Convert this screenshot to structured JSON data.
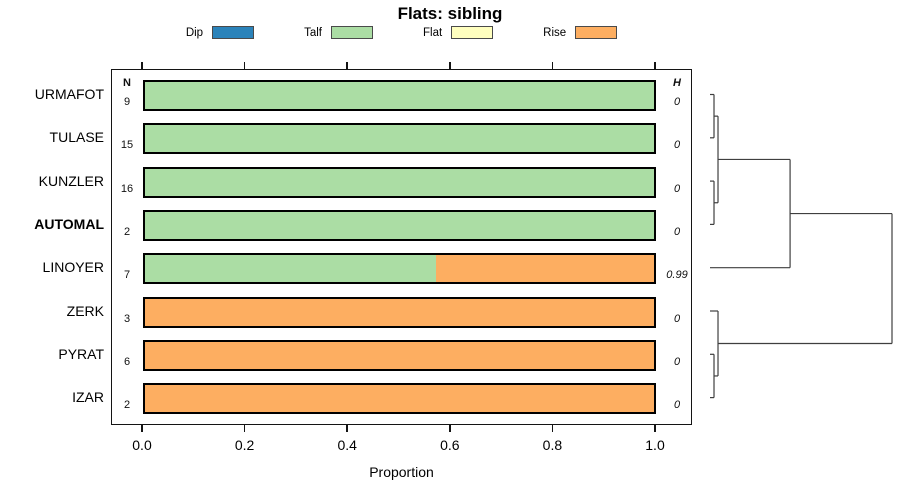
{
  "title": "Flats: sibling",
  "legend": {
    "items": [
      {
        "label": "Dip",
        "color": "#2b83ba"
      },
      {
        "label": "Talf",
        "color": "#abdda4"
      },
      {
        "label": "Flat",
        "color": "#ffffbf"
      },
      {
        "label": "Rise",
        "color": "#fdae61"
      }
    ]
  },
  "columns": {
    "n_header": "N",
    "h_header": "H"
  },
  "x_axis": {
    "tick_labels": [
      "0.0",
      "0.2",
      "0.4",
      "0.6",
      "0.8",
      "1.0"
    ],
    "label": "Proportion"
  },
  "chart_data": {
    "type": "bar",
    "orientation": "horizontal-stacked",
    "title": "Flats: sibling",
    "xlabel": "Proportion",
    "xlim": [
      0,
      1
    ],
    "grid": false,
    "legend_position": "top",
    "categories": [
      "URMAFOT",
      "TULASE",
      "KUNZLER",
      "AUTOMAL",
      "LINOYER",
      "ZERK",
      "PYRAT",
      "IZAR"
    ],
    "emphasized_category": "AUTOMAL",
    "counts_N": [
      9,
      15,
      16,
      2,
      7,
      3,
      6,
      2
    ],
    "entropy_H": [
      "0",
      "0",
      "0",
      "0",
      "0.99",
      "0",
      "0",
      "0"
    ],
    "series": [
      {
        "name": "Dip",
        "color": "#2b83ba",
        "values": [
          0,
          0,
          0,
          0,
          0,
          0,
          0,
          0
        ]
      },
      {
        "name": "Talf",
        "color": "#abdda4",
        "values": [
          1,
          1,
          1,
          1,
          0.571,
          0,
          0,
          0
        ]
      },
      {
        "name": "Flat",
        "color": "#ffffbf",
        "values": [
          0,
          0,
          0,
          0,
          0,
          0,
          0,
          0
        ]
      },
      {
        "name": "Rise",
        "color": "#fdae61",
        "values": [
          0,
          0,
          0,
          0,
          0.429,
          1,
          1,
          1
        ]
      }
    ]
  },
  "dendrogram": {
    "leaves": [
      "URMAFOT",
      "TULASE",
      "KUNZLER",
      "AUTOMAL",
      "LINOYER",
      "ZERK",
      "PYRAT",
      "IZAR"
    ],
    "line_color": "#3f3f3f",
    "merges": [
      {
        "id": "A",
        "children": [
          "leaf:0",
          "leaf:1"
        ],
        "height": 0.022
      },
      {
        "id": "B",
        "children": [
          "leaf:2",
          "leaf:3"
        ],
        "height": 0.022
      },
      {
        "id": "C",
        "children": [
          "A",
          "B"
        ],
        "height": 0.044
      },
      {
        "id": "D",
        "children": [
          "C",
          "leaf:4"
        ],
        "height": 0.44
      },
      {
        "id": "F",
        "children": [
          "leaf:6",
          "leaf:7"
        ],
        "height": 0.022
      },
      {
        "id": "E",
        "children": [
          "leaf:5",
          "F"
        ],
        "height": 0.044
      },
      {
        "id": "G",
        "children": [
          "D",
          "E"
        ],
        "height": 1.0
      }
    ]
  }
}
